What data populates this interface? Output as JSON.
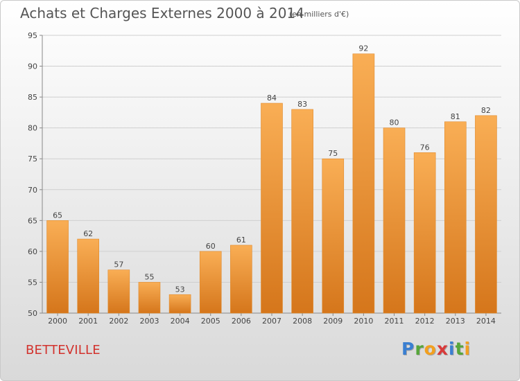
{
  "header": {
    "title": "Achats et Charges Externes 2000 à 2014",
    "subtitle": "(en milliers d'€)"
  },
  "footer": {
    "label": "BETTEVILLE",
    "logo": "Proxiti"
  },
  "colors": {
    "bar_light": "#f7a64a",
    "bar_dark": "#d97a1e",
    "accent_red": "#d2322d"
  },
  "chart_data": {
    "type": "bar",
    "categories": [
      "2000",
      "2001",
      "2002",
      "2003",
      "2004",
      "2005",
      "2006",
      "2007",
      "2008",
      "2009",
      "2010",
      "2011",
      "2012",
      "2013",
      "2014"
    ],
    "values": [
      65,
      62,
      57,
      55,
      53,
      60,
      61,
      84,
      83,
      75,
      92,
      80,
      76,
      81,
      82
    ],
    "title": "Achats et Charges Externes 2000 à 2014",
    "subtitle": "(en milliers d'€)",
    "xlabel": "",
    "ylabel": "",
    "ylim": [
      50,
      95
    ],
    "yticks": [
      50,
      55,
      60,
      65,
      70,
      75,
      80,
      85,
      90,
      95
    ],
    "grid": true
  }
}
